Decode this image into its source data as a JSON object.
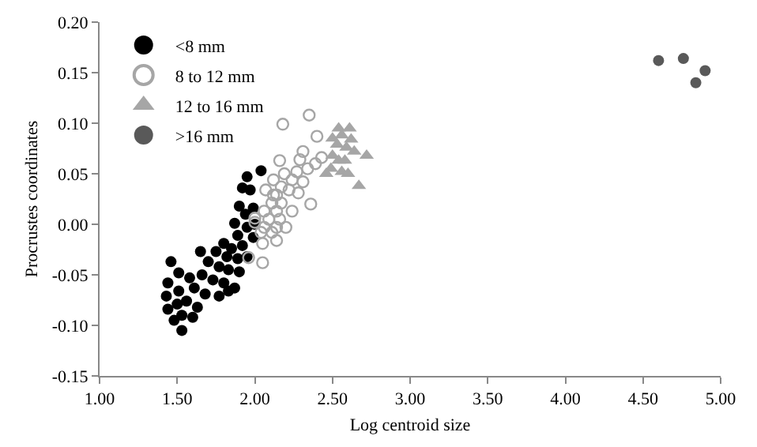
{
  "chart_data": {
    "type": "scatter",
    "xlabel": "Log centroid size",
    "ylabel": "Procrustes coordinates",
    "xlim": [
      1,
      5
    ],
    "xticks": [
      {
        "value": 1,
        "label": "1.00"
      },
      {
        "value": 1.5,
        "label": "1.50"
      },
      {
        "value": 2,
        "label": "2.00"
      },
      {
        "value": 2.5,
        "label": "2.50"
      },
      {
        "value": 3,
        "label": "3.00"
      },
      {
        "value": 3.5,
        "label": "3.50"
      },
      {
        "value": 4,
        "label": "4.00"
      },
      {
        "value": 4.5,
        "label": "4.50"
      },
      {
        "value": 5,
        "label": "5.00"
      }
    ],
    "ylim": [
      -0.15,
      0.2
    ],
    "yticks": [
      {
        "value": -0.15,
        "label": "-0.15"
      },
      {
        "value": -0.1,
        "label": "-0.10"
      },
      {
        "value": -0.05,
        "label": "-0.05"
      },
      {
        "value": 0,
        "label": "0.00"
      },
      {
        "value": 0.05,
        "label": "0.05"
      },
      {
        "value": 0.1,
        "label": "0.10"
      },
      {
        "value": 0.15,
        "label": "0.15"
      },
      {
        "value": 0.2,
        "label": "0.20"
      }
    ],
    "grid": false,
    "legend": "top left",
    "series": [
      {
        "name": "<8 mm",
        "color": "#000000",
        "marker": "circle",
        "x": [
          2.04,
          1.95,
          1.92,
          1.97,
          1.9,
          1.99,
          1.94,
          1.87,
          1.95,
          2.0,
          1.89,
          1.8,
          1.85,
          1.92,
          1.99,
          1.75,
          1.82,
          1.89,
          1.95,
          1.65,
          1.7,
          1.77,
          1.83,
          1.9,
          1.46,
          1.51,
          1.58,
          1.66,
          1.73,
          1.8,
          1.87,
          1.44,
          1.51,
          1.61,
          1.68,
          1.77,
          1.83,
          1.43,
          1.5,
          1.56,
          1.63,
          1.44,
          1.53,
          1.6,
          1.48,
          1.53
        ],
        "values": [
          0.053,
          0.047,
          0.036,
          0.034,
          0.018,
          0.016,
          0.01,
          0.001,
          -0.003,
          0.0,
          -0.011,
          -0.019,
          -0.024,
          -0.021,
          -0.013,
          -0.027,
          -0.032,
          -0.034,
          -0.032,
          -0.027,
          -0.037,
          -0.042,
          -0.045,
          -0.047,
          -0.037,
          -0.048,
          -0.053,
          -0.05,
          -0.055,
          -0.058,
          -0.063,
          -0.058,
          -0.066,
          -0.063,
          -0.069,
          -0.071,
          -0.066,
          -0.071,
          -0.079,
          -0.076,
          -0.082,
          -0.084,
          -0.09,
          -0.092,
          -0.095,
          -0.105
        ]
      },
      {
        "name": "8 to 12 mm",
        "color": "#a6a6a6",
        "marker": "circle-open",
        "x": [
          2.35,
          2.18,
          2.4,
          2.31,
          2.43,
          2.16,
          2.39,
          2.29,
          2.19,
          2.27,
          2.34,
          2.12,
          2.24,
          2.17,
          2.31,
          2.07,
          2.14,
          2.22,
          2.28,
          2.36,
          2.11,
          2.17,
          2.06,
          2.14,
          2.24,
          2.0,
          2.09,
          2.16,
          2.06,
          2.14,
          2.2,
          2.04,
          2.11,
          2.05,
          2.14,
          1.96,
          2.05,
          2.0,
          2.12
        ],
        "values": [
          0.108,
          0.099,
          0.087,
          0.072,
          0.066,
          0.063,
          0.06,
          0.064,
          0.05,
          0.052,
          0.055,
          0.044,
          0.044,
          0.037,
          0.042,
          0.034,
          0.029,
          0.034,
          0.031,
          0.02,
          0.021,
          0.021,
          0.013,
          0.013,
          0.013,
          0.006,
          0.005,
          0.005,
          -0.003,
          -0.003,
          -0.003,
          -0.008,
          -0.008,
          -0.019,
          -0.016,
          -0.033,
          -0.038,
          0.002,
          0.029
        ]
      },
      {
        "name": "12 to 16 mm",
        "color": "#a6a6a6",
        "marker": "triangle",
        "x": [
          2.54,
          2.61,
          2.56,
          2.5,
          2.62,
          2.53,
          2.59,
          2.64,
          2.72,
          2.5,
          2.54,
          2.58,
          2.49,
          2.56,
          2.6,
          2.67,
          2.46
        ],
        "values": [
          0.095,
          0.095,
          0.088,
          0.085,
          0.084,
          0.079,
          0.076,
          0.072,
          0.068,
          0.068,
          0.063,
          0.063,
          0.055,
          0.052,
          0.05,
          0.038,
          0.05
        ]
      },
      {
        "name": ">16 mm",
        "color": "#595959",
        "marker": "circle",
        "x": [
          4.6,
          4.76,
          4.9,
          4.84
        ],
        "values": [
          0.162,
          0.164,
          0.152,
          0.14
        ]
      }
    ]
  }
}
